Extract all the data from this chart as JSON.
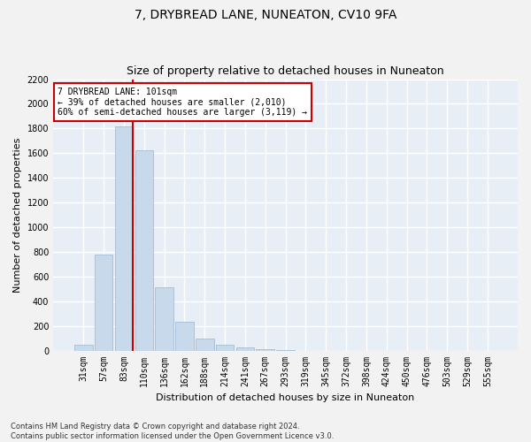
{
  "title": "7, DRYBREAD LANE, NUNEATON, CV10 9FA",
  "subtitle": "Size of property relative to detached houses in Nuneaton",
  "xlabel": "Distribution of detached houses by size in Nuneaton",
  "ylabel": "Number of detached properties",
  "categories": [
    "31sqm",
    "57sqm",
    "83sqm",
    "110sqm",
    "136sqm",
    "162sqm",
    "188sqm",
    "214sqm",
    "241sqm",
    "267sqm",
    "293sqm",
    "319sqm",
    "345sqm",
    "372sqm",
    "398sqm",
    "424sqm",
    "450sqm",
    "476sqm",
    "503sqm",
    "529sqm",
    "555sqm"
  ],
  "values": [
    50,
    780,
    1820,
    1620,
    510,
    230,
    100,
    47,
    28,
    10,
    2,
    0,
    0,
    0,
    0,
    0,
    0,
    0,
    0,
    0,
    0
  ],
  "bar_color": "#c8d9ec",
  "bar_edge_color": "#9ab5d0",
  "ylim": [
    0,
    2200
  ],
  "yticks": [
    0,
    200,
    400,
    600,
    800,
    1000,
    1200,
    1400,
    1600,
    1800,
    2000,
    2200
  ],
  "property_bar_index": 2,
  "vline_color": "#cc0000",
  "annotation_text": "7 DRYBREAD LANE: 101sqm\n← 39% of detached houses are smaller (2,010)\n60% of semi-detached houses are larger (3,119) →",
  "annotation_box_color": "#ffffff",
  "annotation_border_color": "#cc0000",
  "footnote": "Contains HM Land Registry data © Crown copyright and database right 2024.\nContains public sector information licensed under the Open Government Licence v3.0.",
  "fig_bg_color": "#f2f2f2",
  "plot_bg_color": "#e8eef5",
  "grid_color": "#ffffff",
  "title_fontsize": 10,
  "tick_fontsize": 7,
  "ylabel_fontsize": 8,
  "xlabel_fontsize": 8,
  "annotation_fontsize": 7,
  "footnote_fontsize": 6
}
